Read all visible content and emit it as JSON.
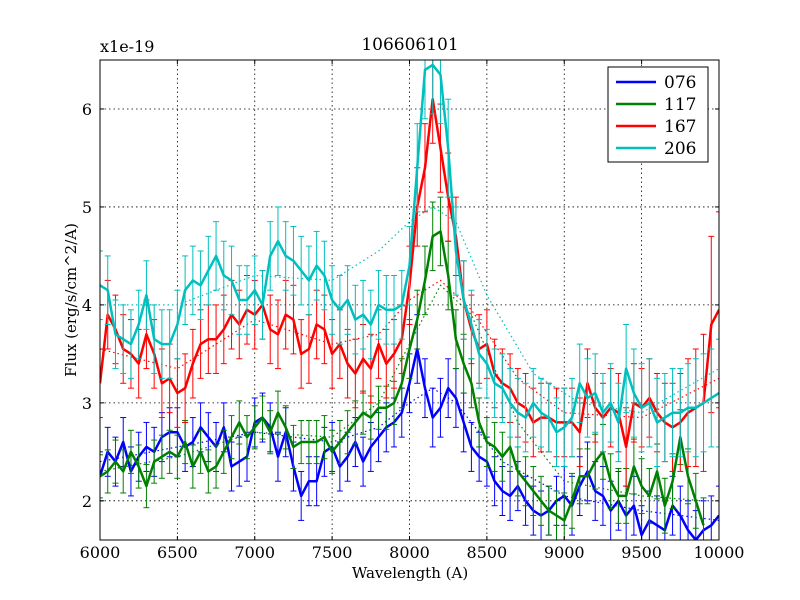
{
  "chart_data": {
    "type": "line",
    "title": "106606101",
    "xlabel": "Wavelength (A)",
    "ylabel": "Flux (erg/s/cm^2/A)",
    "offset_label": "x1e-19",
    "xlim": [
      6000,
      10000
    ],
    "ylim": [
      1.6,
      6.5
    ],
    "xticks": [
      6000,
      6500,
      7000,
      7500,
      8000,
      8500,
      9000,
      9500,
      10000
    ],
    "yticks": [
      2,
      3,
      4,
      5,
      6
    ],
    "grid": true,
    "legend_position": "top-right",
    "series": [
      {
        "name": "076",
        "color": "#0000ff",
        "x": [
          6000,
          6050,
          6100,
          6150,
          6200,
          6250,
          6300,
          6350,
          6400,
          6450,
          6500,
          6550,
          6600,
          6650,
          6700,
          6750,
          6800,
          6850,
          6900,
          6950,
          7000,
          7050,
          7100,
          7150,
          7200,
          7250,
          7300,
          7350,
          7400,
          7450,
          7500,
          7550,
          7600,
          7650,
          7700,
          7750,
          7800,
          7850,
          7900,
          7950,
          8000,
          8050,
          8100,
          8150,
          8200,
          8250,
          8300,
          8350,
          8400,
          8450,
          8500,
          8550,
          8600,
          8650,
          8700,
          8750,
          8800,
          8850,
          8900,
          8950,
          9000,
          9050,
          9100,
          9150,
          9200,
          9250,
          9300,
          9350,
          9400,
          9450,
          9500,
          9550,
          9600,
          9650,
          9700,
          9750,
          9800,
          9850,
          9900,
          9950,
          10000
        ],
        "values": [
          2.25,
          2.5,
          2.4,
          2.6,
          2.3,
          2.45,
          2.55,
          2.5,
          2.65,
          2.7,
          2.7,
          2.55,
          2.6,
          2.75,
          2.65,
          2.55,
          2.75,
          2.35,
          2.4,
          2.45,
          2.8,
          2.85,
          2.75,
          2.45,
          2.7,
          2.35,
          2.05,
          2.2,
          2.2,
          2.5,
          2.55,
          2.35,
          2.45,
          2.6,
          2.4,
          2.55,
          2.65,
          2.75,
          2.8,
          2.9,
          3.2,
          3.55,
          3.15,
          2.85,
          2.95,
          3.15,
          3.05,
          2.8,
          2.55,
          2.45,
          2.4,
          2.2,
          2.1,
          2.05,
          2.15,
          2.0,
          1.9,
          1.85,
          1.9,
          2.0,
          2.05,
          1.95,
          2.15,
          2.3,
          2.1,
          2.05,
          1.9,
          2.0,
          1.85,
          1.95,
          1.65,
          1.8,
          1.75,
          1.7,
          1.95,
          1.85,
          1.7,
          1.6,
          1.7,
          1.75,
          1.85
        ],
        "errors": [
          0.25,
          0.25,
          0.25,
          0.25,
          0.25,
          0.25,
          0.25,
          0.25,
          0.25,
          0.25,
          0.25,
          0.25,
          0.25,
          0.25,
          0.25,
          0.25,
          0.25,
          0.25,
          0.25,
          0.25,
          0.25,
          0.25,
          0.25,
          0.25,
          0.25,
          0.25,
          0.25,
          0.25,
          0.25,
          0.25,
          0.25,
          0.25,
          0.25,
          0.25,
          0.25,
          0.25,
          0.25,
          0.25,
          0.25,
          0.25,
          0.3,
          0.35,
          0.3,
          0.3,
          0.3,
          0.3,
          0.3,
          0.3,
          0.25,
          0.25,
          0.25,
          0.25,
          0.25,
          0.25,
          0.25,
          0.25,
          0.25,
          0.25,
          0.25,
          0.25,
          0.3,
          0.3,
          0.3,
          0.3,
          0.3,
          0.3,
          0.3,
          0.3,
          0.3,
          0.3,
          0.3,
          0.3,
          0.3,
          0.3,
          0.3,
          0.3,
          0.3,
          0.3,
          0.3,
          0.3,
          0.3
        ],
        "smooth_x": [
          6000,
          6500,
          7000,
          7500,
          7800,
          8000,
          8150,
          8300,
          8600,
          9000,
          9500,
          10000
        ],
        "smooth_values": [
          2.4,
          2.55,
          2.7,
          2.6,
          2.75,
          3.0,
          3.15,
          3.0,
          2.4,
          2.05,
          1.9,
          1.8
        ]
      },
      {
        "name": "117",
        "color": "#008000",
        "x": [
          6000,
          6050,
          6100,
          6150,
          6200,
          6250,
          6300,
          6350,
          6400,
          6450,
          6500,
          6550,
          6600,
          6650,
          6700,
          6750,
          6800,
          6850,
          6900,
          6950,
          7000,
          7050,
          7100,
          7150,
          7200,
          7250,
          7300,
          7350,
          7400,
          7450,
          7500,
          7550,
          7600,
          7650,
          7700,
          7750,
          7800,
          7850,
          7900,
          7950,
          8000,
          8050,
          8100,
          8150,
          8200,
          8250,
          8300,
          8350,
          8400,
          8450,
          8500,
          8550,
          8600,
          8650,
          8700,
          8750,
          8800,
          8850,
          8900,
          8950,
          9000,
          9050,
          9100,
          9150,
          9200,
          9250,
          9300,
          9350,
          9400,
          9450,
          9500,
          9550,
          9600,
          9650,
          9700,
          9750,
          9800,
          9850,
          9900
        ],
        "values": [
          2.25,
          2.3,
          2.4,
          2.3,
          2.5,
          2.35,
          2.15,
          2.4,
          2.45,
          2.5,
          2.45,
          2.6,
          2.35,
          2.5,
          2.3,
          2.35,
          2.5,
          2.65,
          2.8,
          2.65,
          2.75,
          2.85,
          2.7,
          2.9,
          2.75,
          2.55,
          2.6,
          2.6,
          2.6,
          2.65,
          2.5,
          2.6,
          2.7,
          2.8,
          2.9,
          2.85,
          2.95,
          2.95,
          3.0,
          3.2,
          3.55,
          3.85,
          4.25,
          4.7,
          4.75,
          4.3,
          3.65,
          3.4,
          3.2,
          2.8,
          2.6,
          2.55,
          2.45,
          2.55,
          2.3,
          2.2,
          2.1,
          2.0,
          1.9,
          1.85,
          1.8,
          2.0,
          2.25,
          2.25,
          2.4,
          2.5,
          2.2,
          2.05,
          2.05,
          2.35,
          2.15,
          2.05,
          2.3,
          1.95,
          2.2,
          2.65,
          2.25,
          2.0,
          1.75
        ],
        "errors": [
          0.22,
          0.22,
          0.22,
          0.22,
          0.22,
          0.22,
          0.22,
          0.22,
          0.22,
          0.22,
          0.22,
          0.22,
          0.22,
          0.22,
          0.22,
          0.22,
          0.22,
          0.22,
          0.22,
          0.22,
          0.22,
          0.22,
          0.22,
          0.22,
          0.22,
          0.22,
          0.22,
          0.22,
          0.22,
          0.22,
          0.22,
          0.22,
          0.22,
          0.22,
          0.22,
          0.22,
          0.22,
          0.22,
          0.22,
          0.25,
          0.3,
          0.3,
          0.35,
          0.35,
          0.35,
          0.35,
          0.3,
          0.3,
          0.25,
          0.25,
          0.25,
          0.25,
          0.25,
          0.25,
          0.25,
          0.25,
          0.25,
          0.25,
          0.25,
          0.25,
          0.28,
          0.28,
          0.28,
          0.28,
          0.28,
          0.28,
          0.28,
          0.28,
          0.28,
          0.28,
          0.28,
          0.28,
          0.28,
          0.28,
          0.28,
          0.28,
          0.28,
          0.28,
          0.28
        ],
        "smooth_x": [
          6000,
          6500,
          7000,
          7500,
          7800,
          8000,
          8200,
          8400,
          8700,
          9000,
          9500,
          9900
        ],
        "smooth_values": [
          2.3,
          2.45,
          2.7,
          2.65,
          3.0,
          3.6,
          4.2,
          3.9,
          2.8,
          2.2,
          2.05,
          2.0
        ]
      },
      {
        "name": "167",
        "color": "#ff0000",
        "x": [
          6000,
          6050,
          6100,
          6150,
          6200,
          6250,
          6300,
          6350,
          6400,
          6450,
          6500,
          6550,
          6600,
          6650,
          6700,
          6750,
          6800,
          6850,
          6900,
          6950,
          7000,
          7050,
          7100,
          7150,
          7200,
          7250,
          7300,
          7350,
          7400,
          7450,
          7500,
          7550,
          7600,
          7650,
          7700,
          7750,
          7800,
          7850,
          7900,
          7950,
          8000,
          8050,
          8100,
          8150,
          8200,
          8250,
          8300,
          8350,
          8400,
          8450,
          8500,
          8550,
          8600,
          8650,
          8700,
          8750,
          8800,
          8850,
          8900,
          8950,
          9000,
          9050,
          9100,
          9150,
          9200,
          9250,
          9300,
          9350,
          9400,
          9450,
          9500,
          9550,
          9600,
          9650,
          9700,
          9750,
          9800,
          9850,
          9900,
          9950,
          10000
        ],
        "values": [
          3.2,
          3.9,
          3.75,
          3.55,
          3.5,
          3.4,
          3.7,
          3.5,
          3.2,
          3.25,
          3.1,
          3.15,
          3.4,
          3.6,
          3.65,
          3.65,
          3.75,
          3.9,
          3.8,
          3.95,
          3.9,
          4.0,
          3.75,
          3.7,
          3.9,
          3.85,
          3.5,
          3.55,
          3.8,
          3.75,
          3.5,
          3.6,
          3.4,
          3.3,
          3.45,
          3.35,
          3.6,
          3.4,
          3.5,
          3.65,
          4.2,
          5.0,
          5.4,
          6.1,
          5.6,
          5.1,
          4.7,
          4.05,
          3.75,
          3.55,
          3.6,
          3.3,
          3.2,
          3.15,
          3.0,
          2.95,
          2.8,
          2.85,
          2.85,
          2.8,
          2.8,
          2.8,
          2.7,
          3.2,
          2.95,
          2.85,
          2.95,
          2.9,
          2.55,
          3.0,
          2.95,
          3.05,
          2.9,
          2.8,
          2.75,
          2.8,
          2.9,
          2.95,
          3.0,
          3.8,
          3.95
        ],
        "errors": [
          0.35,
          0.35,
          0.35,
          0.35,
          0.35,
          0.35,
          0.35,
          0.35,
          0.35,
          0.35,
          0.35,
          0.35,
          0.35,
          0.35,
          0.35,
          0.35,
          0.35,
          0.35,
          0.35,
          0.35,
          0.35,
          0.35,
          0.35,
          0.35,
          0.35,
          0.35,
          0.35,
          0.35,
          0.35,
          0.35,
          0.35,
          0.35,
          0.35,
          0.35,
          0.35,
          0.35,
          0.35,
          0.35,
          0.35,
          0.35,
          0.4,
          0.4,
          0.45,
          0.45,
          0.45,
          0.45,
          0.4,
          0.4,
          0.35,
          0.35,
          0.35,
          0.35,
          0.35,
          0.35,
          0.35,
          0.35,
          0.35,
          0.35,
          0.35,
          0.35,
          0.35,
          0.35,
          0.35,
          0.35,
          0.35,
          0.35,
          0.4,
          0.4,
          0.4,
          0.4,
          0.4,
          0.4,
          0.4,
          0.4,
          0.45,
          0.5,
          0.55,
          0.6,
          0.7,
          0.9,
          1.0
        ],
        "smooth_x": [
          6000,
          6500,
          7000,
          7500,
          7800,
          8000,
          8200,
          8400,
          8700,
          9000,
          9500,
          10000
        ],
        "smooth_values": [
          3.55,
          3.35,
          3.85,
          3.6,
          3.7,
          4.05,
          4.25,
          3.95,
          3.25,
          2.9,
          2.85,
          3.25
        ]
      },
      {
        "name": "206",
        "color": "#00bfbf",
        "x": [
          6000,
          6050,
          6100,
          6150,
          6200,
          6250,
          6300,
          6350,
          6400,
          6450,
          6500,
          6550,
          6600,
          6650,
          6700,
          6750,
          6800,
          6850,
          6900,
          6950,
          7000,
          7050,
          7100,
          7150,
          7200,
          7250,
          7300,
          7350,
          7400,
          7450,
          7500,
          7550,
          7600,
          7650,
          7700,
          7750,
          7800,
          7850,
          7900,
          7950,
          8000,
          8050,
          8100,
          8150,
          8200,
          8250,
          8300,
          8350,
          8400,
          8450,
          8500,
          8550,
          8600,
          8650,
          8700,
          8750,
          8800,
          8850,
          8900,
          8950,
          9000,
          9050,
          9100,
          9150,
          9200,
          9250,
          9300,
          9350,
          9400,
          9450,
          9500,
          9550,
          9600,
          9650,
          9700,
          9750,
          9800,
          9850,
          9900,
          9950,
          10000
        ],
        "values": [
          4.2,
          4.15,
          3.7,
          3.65,
          3.6,
          3.8,
          4.1,
          3.65,
          3.6,
          3.6,
          3.8,
          4.15,
          4.25,
          4.2,
          4.35,
          4.5,
          4.3,
          4.25,
          4.05,
          4.05,
          4.15,
          4.0,
          4.5,
          4.65,
          4.5,
          4.45,
          4.35,
          4.25,
          4.4,
          4.3,
          4.05,
          3.95,
          4.05,
          3.85,
          3.9,
          3.8,
          4.0,
          3.95,
          3.95,
          4.0,
          4.4,
          5.4,
          6.4,
          6.45,
          6.35,
          5.6,
          4.55,
          4.05,
          3.8,
          3.5,
          3.4,
          3.2,
          3.15,
          3.0,
          2.9,
          2.85,
          3.0,
          2.9,
          2.85,
          2.7,
          2.75,
          2.85,
          3.2,
          3.05,
          3.1,
          2.9,
          3.0,
          2.8,
          3.35,
          3.1,
          2.95,
          3.0,
          2.8,
          2.85,
          2.9,
          2.9,
          2.95,
          2.95,
          3.0,
          3.05,
          3.1
        ],
        "errors": [
          0.35,
          0.35,
          0.35,
          0.35,
          0.35,
          0.35,
          0.35,
          0.35,
          0.35,
          0.35,
          0.35,
          0.35,
          0.35,
          0.35,
          0.35,
          0.35,
          0.35,
          0.35,
          0.35,
          0.35,
          0.35,
          0.35,
          0.35,
          0.35,
          0.35,
          0.35,
          0.35,
          0.35,
          0.35,
          0.35,
          0.35,
          0.35,
          0.35,
          0.35,
          0.35,
          0.35,
          0.35,
          0.35,
          0.35,
          0.35,
          0.4,
          0.45,
          0.5,
          0.5,
          0.5,
          0.5,
          0.45,
          0.4,
          0.35,
          0.35,
          0.35,
          0.35,
          0.35,
          0.35,
          0.35,
          0.35,
          0.35,
          0.35,
          0.35,
          0.35,
          0.4,
          0.4,
          0.4,
          0.4,
          0.4,
          0.4,
          0.4,
          0.4,
          0.45,
          0.45,
          0.45,
          0.45,
          0.45,
          0.45,
          0.45,
          0.45,
          0.45,
          0.5,
          0.5,
          0.5,
          0.55
        ],
        "smooth_x": [
          6000,
          6500,
          7000,
          7500,
          7800,
          8000,
          8150,
          8300,
          8500,
          8800,
          9100,
          9500,
          10000
        ],
        "smooth_values": [
          4.0,
          4.0,
          4.3,
          4.25,
          4.55,
          4.85,
          5.0,
          4.85,
          4.1,
          3.3,
          3.0,
          2.9,
          3.35
        ]
      }
    ]
  }
}
